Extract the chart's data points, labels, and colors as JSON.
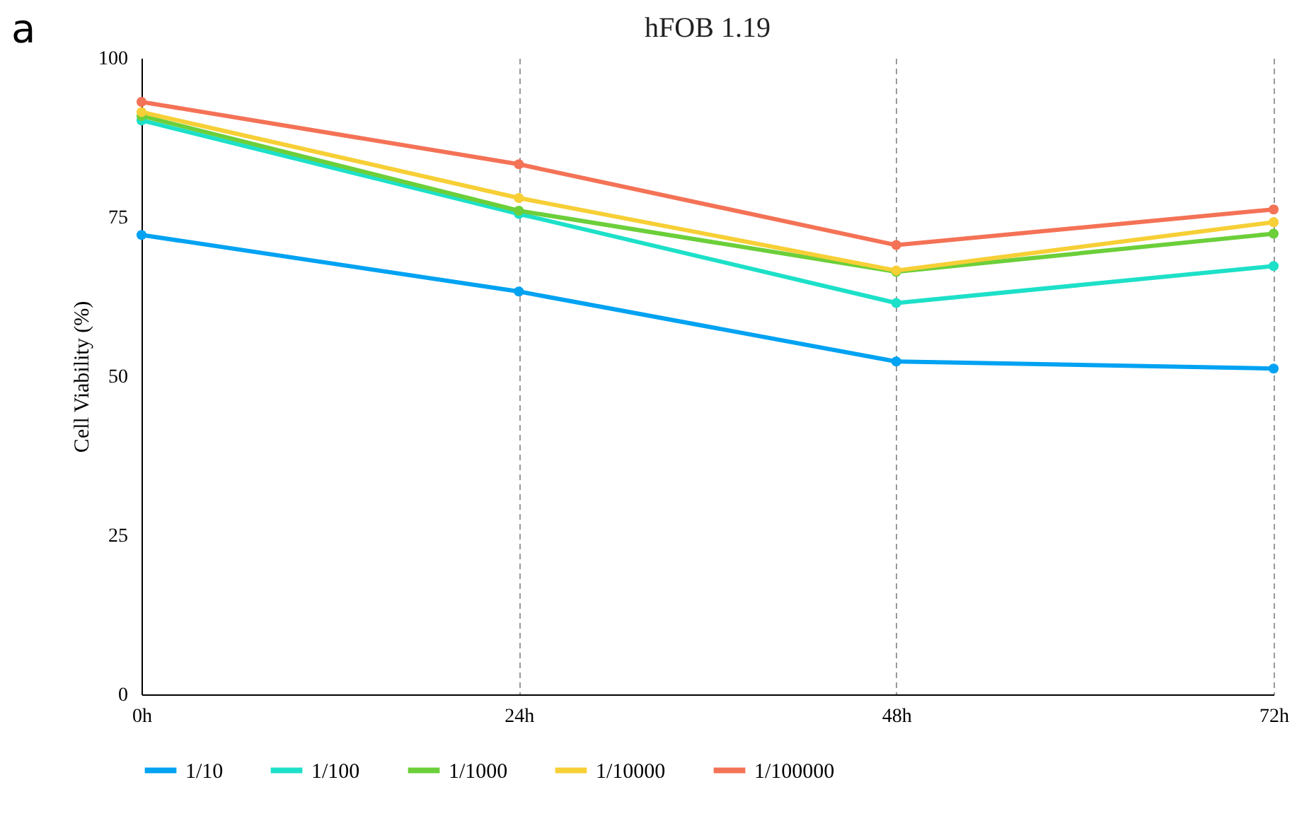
{
  "chart_data": {
    "type": "line",
    "title": "hFOB 1.19",
    "ylabel": "Cell Viability (%)",
    "annotations": [
      "a"
    ],
    "categories": [
      "0h",
      "24h",
      "48h",
      "72h"
    ],
    "ylim": [
      0,
      100
    ],
    "yticks": [
      0,
      25,
      50,
      75,
      100
    ],
    "grid": "x",
    "legend": "bottom",
    "marker": "circle",
    "line_style": "solid",
    "series": [
      {
        "name": "1/10",
        "color": "#00a2f2",
        "values": [
          72.2,
          63.3,
          52.3,
          51.2
        ]
      },
      {
        "name": "1/100",
        "color": "#1de0c8",
        "values": [
          90.2,
          75.5,
          61.5,
          67.3
        ]
      },
      {
        "name": "1/1000",
        "color": "#6ccf3a",
        "values": [
          90.9,
          76,
          66.4,
          72.4
        ]
      },
      {
        "name": "1/10000",
        "color": "#f7cf36",
        "values": [
          91.5,
          78,
          66.6,
          74.2
        ]
      },
      {
        "name": "1/100000",
        "color": "#f47256",
        "values": [
          93.1,
          83.3,
          70.6,
          76.2
        ]
      }
    ]
  }
}
